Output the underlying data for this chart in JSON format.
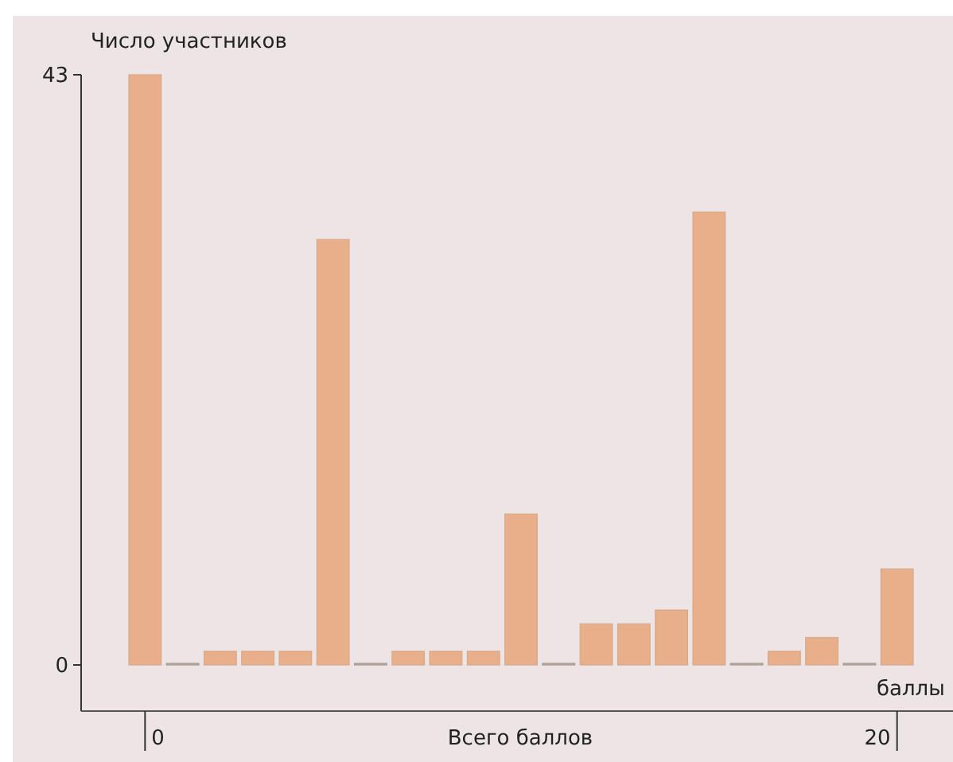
{
  "chart_data": {
    "type": "bar",
    "ylabel": "Число участников",
    "xlabel": "Всего баллов",
    "annotations": [
      "баллы"
    ],
    "categories": [
      "0",
      null,
      null,
      null,
      null,
      null,
      null,
      null,
      null,
      null,
      null,
      null,
      null,
      null,
      null,
      null,
      null,
      null,
      null,
      null,
      "20"
    ],
    "values": [
      43,
      0,
      1,
      1,
      1,
      31,
      0,
      1,
      1,
      1,
      11,
      0,
      3,
      3,
      4,
      33,
      0,
      1,
      2,
      0,
      7
    ],
    "color": "#e8b08a",
    "ylim": [
      0,
      43
    ],
    "yticks": [
      0,
      43
    ],
    "grid": false
  }
}
